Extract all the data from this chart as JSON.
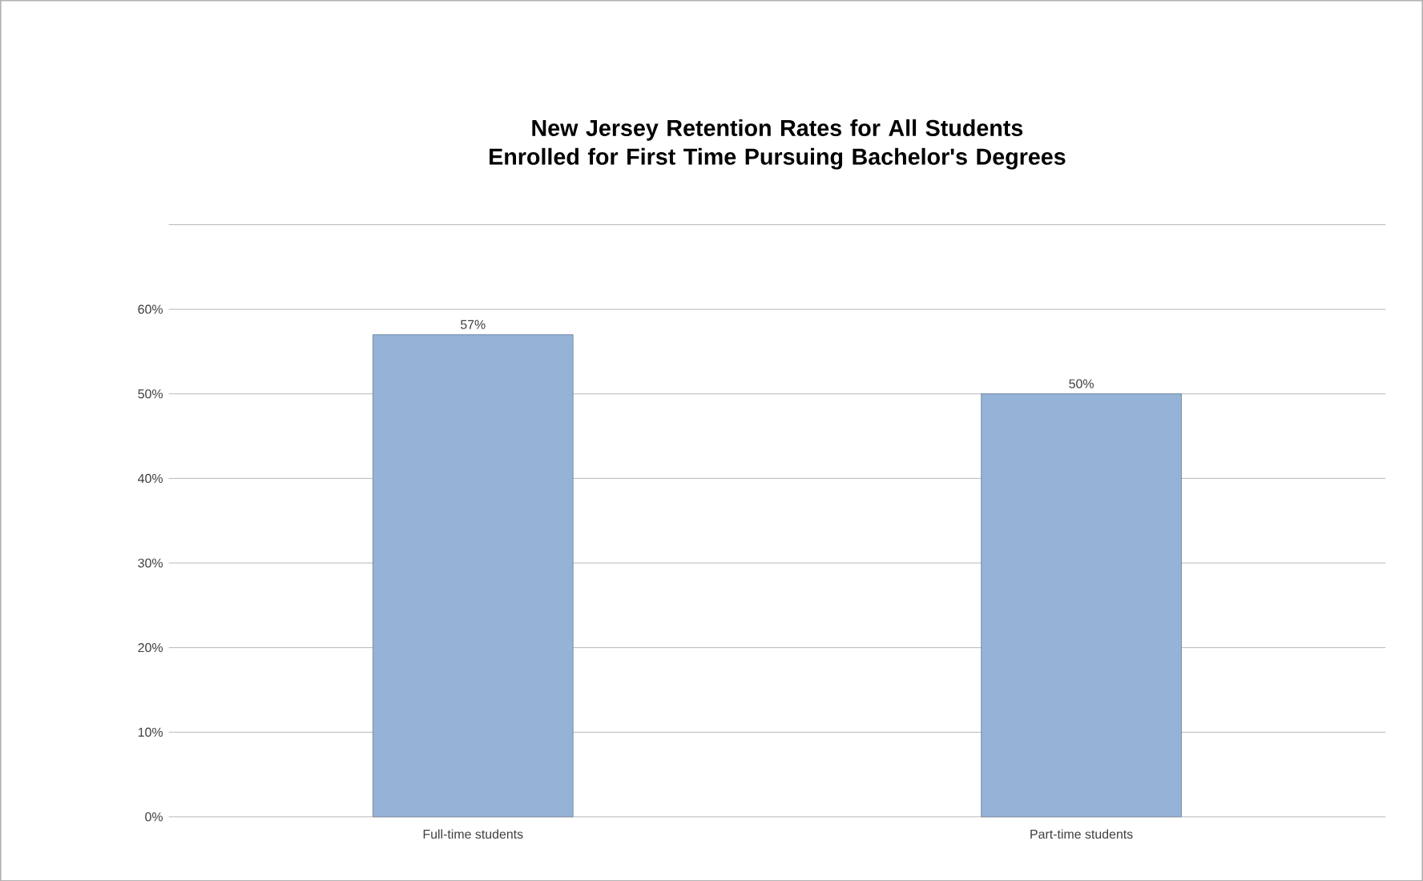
{
  "chart_data": {
    "type": "bar",
    "title": "New Jersey Retention Rates for All Students Enrolled for First Time Pursuing Bachelor's Degrees",
    "categories": [
      "Full-time students",
      "Part-time students"
    ],
    "values": [
      57,
      50
    ],
    "value_labels": [
      "57%",
      "50%"
    ],
    "color": "#95b3d7",
    "ylim": [
      0,
      70
    ],
    "yticks": [
      {
        "value": 0,
        "label": "0%"
      },
      {
        "value": 10,
        "label": "10%"
      },
      {
        "value": 20,
        "label": "20%"
      },
      {
        "value": 30,
        "label": "30%"
      },
      {
        "value": 40,
        "label": "40%"
      },
      {
        "value": 50,
        "label": "50%"
      },
      {
        "value": 60,
        "label": "60%"
      },
      {
        "value": 70,
        "label": null
      }
    ],
    "grid": "y"
  }
}
